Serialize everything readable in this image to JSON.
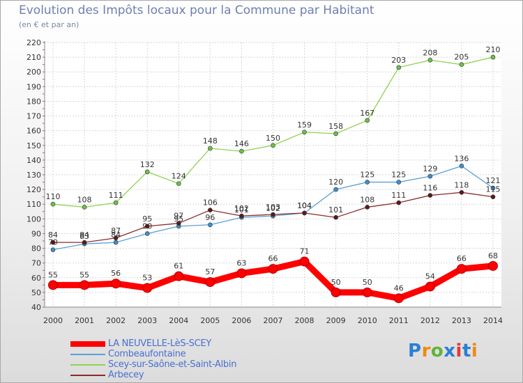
{
  "title": "Evolution des Impôts locaux pour la Commune par Habitant",
  "subtitle": "(en € et par an)",
  "logo": {
    "text": "Proxiti",
    "letters": [
      "P",
      "r",
      "o",
      "x",
      "i",
      "t",
      "i"
    ],
    "colors": [
      "#2a7fd4",
      "#f08a10",
      "#62b33a",
      "#2a7fd4",
      "#e83838",
      "#2a7fd4",
      "#f08a10"
    ]
  },
  "chart_data": {
    "type": "line",
    "title": "Evolution des Impôts locaux pour la Commune par Habitant",
    "subtitle": "(en € et par an)",
    "xlabel": "",
    "ylabel": "",
    "x": [
      "2000",
      "2001",
      "2002",
      "2003",
      "2004",
      "2005",
      "2006",
      "2007",
      "2008",
      "2009",
      "2010",
      "2011",
      "2012",
      "2013",
      "2014"
    ],
    "ylim": [
      40,
      220
    ],
    "yticks": [
      40,
      50,
      60,
      70,
      80,
      90,
      100,
      110,
      120,
      130,
      140,
      150,
      160,
      170,
      180,
      190,
      200,
      210,
      220
    ],
    "grid": true,
    "legend_position": "bottom-left",
    "series": [
      {
        "name": "LA NEUVELLE-LèS-SCEY",
        "color": "#ff0000",
        "marker_color": "#ff0000",
        "thick": true,
        "values": [
          55,
          55,
          56,
          53,
          61,
          57,
          63,
          66,
          71,
          50,
          50,
          46,
          54,
          66,
          68
        ],
        "labels": [
          "55",
          "55",
          "56",
          "53",
          "61",
          "57",
          "63",
          "66",
          "71",
          "50",
          "50",
          "46",
          "54",
          "66",
          "68"
        ]
      },
      {
        "name": "Combeaufontaine",
        "color": "#5a9fd4",
        "marker_color": "#3e8fd0",
        "thick": false,
        "values": [
          79,
          83,
          84,
          90,
          95,
          96,
          101,
          102,
          104,
          120,
          125,
          125,
          129,
          136,
          121
        ],
        "labels": [
          "79",
          "83",
          "84",
          "90",
          "95",
          "96",
          "101",
          "102",
          "104",
          "120",
          "125",
          "125",
          "129",
          "136",
          "121"
        ]
      },
      {
        "name": "Scey-sur-Saône-et-Saint-Albin",
        "color": "#8fd14f",
        "marker_color": "#6cc24a",
        "thick": false,
        "values": [
          110,
          108,
          111,
          132,
          124,
          148,
          146,
          150,
          159,
          158,
          167,
          203,
          208,
          205,
          210
        ],
        "labels": [
          "110",
          "108",
          "111",
          "132",
          "124",
          "148",
          "146",
          "150",
          "159",
          "158",
          "167",
          "203",
          "208",
          "205",
          "210"
        ]
      },
      {
        "name": "Arbecey",
        "color": "#8b2a2a",
        "marker_color": "#5a1a1a",
        "thick": false,
        "values": [
          84,
          84,
          87,
          95,
          97,
          106,
          102,
          103,
          104,
          101,
          108,
          111,
          116,
          118,
          115
        ],
        "labels": [
          "84",
          "84",
          "87",
          "95",
          "97",
          "106",
          "102",
          "103",
          "104",
          "101",
          "108",
          "111",
          "116",
          "118",
          "115"
        ]
      }
    ]
  }
}
